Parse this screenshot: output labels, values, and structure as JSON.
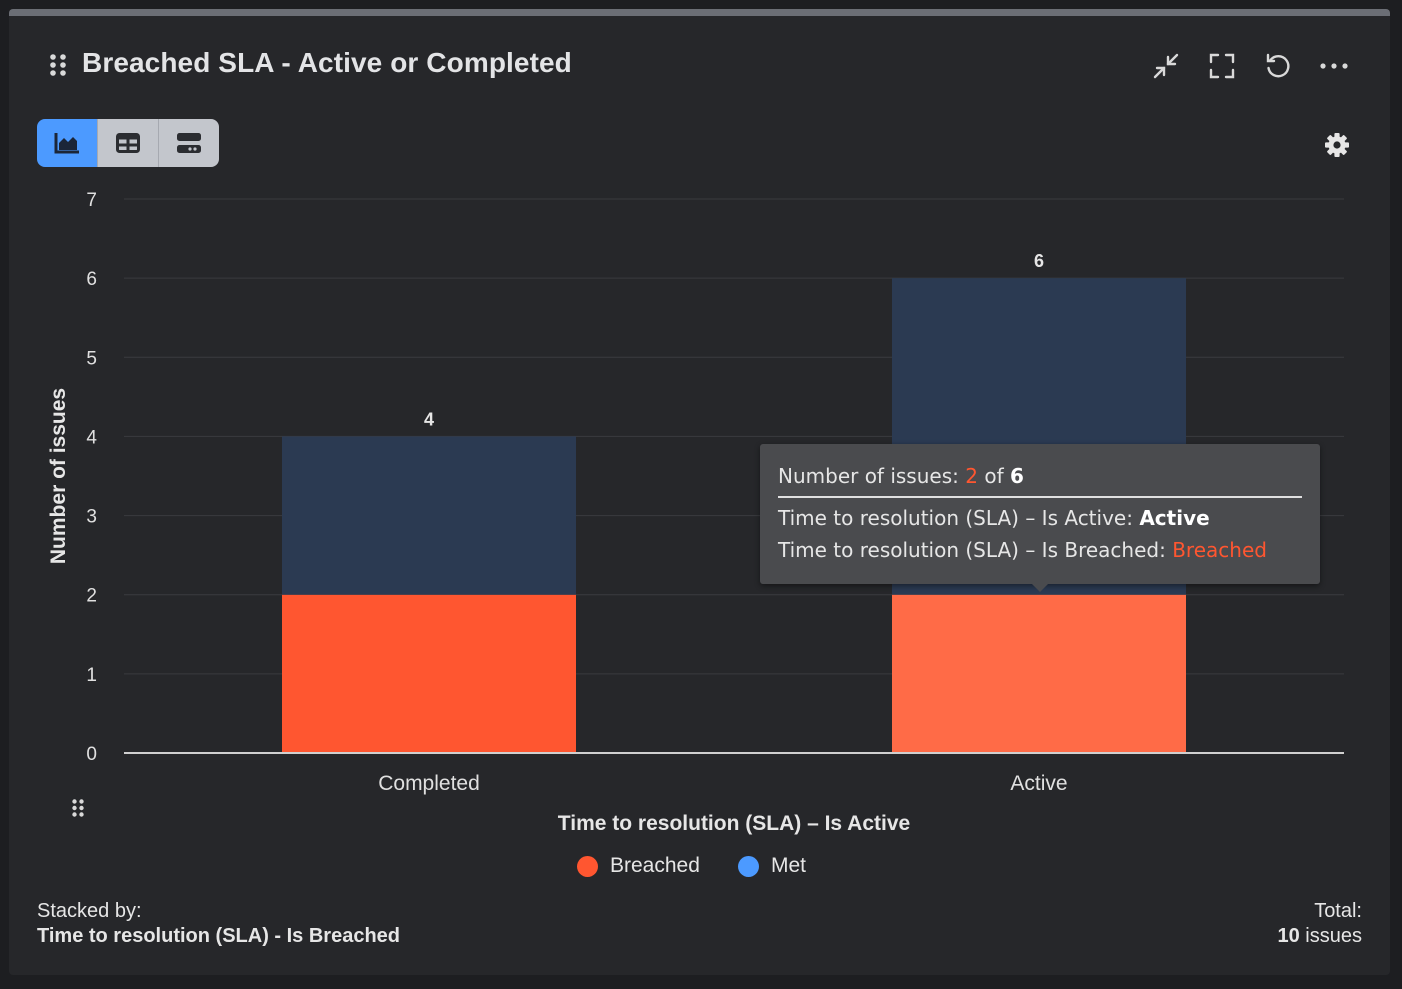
{
  "header": {
    "title": "Breached SLA - Active or Completed",
    "icons": [
      "drag-handle-icon",
      "minimize-icon",
      "fullscreen-icon",
      "refresh-icon",
      "more-icon"
    ]
  },
  "view_switcher": {
    "selected": "chart",
    "options": [
      "chart-icon",
      "table-icon",
      "list-icon"
    ]
  },
  "colors": {
    "breached": "#ff5630",
    "breached_hover": "#ff6b47",
    "met": "#2b3a52",
    "accent": "#4c9aff",
    "legend_met": "#4c9aff"
  },
  "chart_data": {
    "type": "bar",
    "stacked": true,
    "categories": [
      "Completed",
      "Active"
    ],
    "series": [
      {
        "name": "Breached",
        "values": [
          2,
          2
        ]
      },
      {
        "name": "Met",
        "values": [
          2,
          4
        ]
      }
    ],
    "totals": [
      4,
      6
    ],
    "ylim": [
      0,
      7
    ],
    "yticks": [
      0,
      1,
      2,
      3,
      4,
      5,
      6,
      7
    ],
    "xlabel": "Time to resolution (SLA) – Is Active",
    "ylabel": "Number of issues",
    "legend": {
      "position": "bottom-center",
      "entries": [
        "Breached",
        "Met"
      ]
    },
    "grid": true
  },
  "tooltip": {
    "label": "Number of issues: ",
    "value": "2",
    "of": " of ",
    "total": "6",
    "row1_label": "Time to resolution (SLA) – Is Active: ",
    "row1_value": "Active",
    "row2_label": "Time to resolution (SLA) – Is Breached: ",
    "row2_value": "Breached"
  },
  "footer": {
    "stacked_by_label": "Stacked by:",
    "stacked_by_value": "Time to resolution (SLA) - Is Breached",
    "total_label": "Total:",
    "total_value": "10 issues"
  }
}
